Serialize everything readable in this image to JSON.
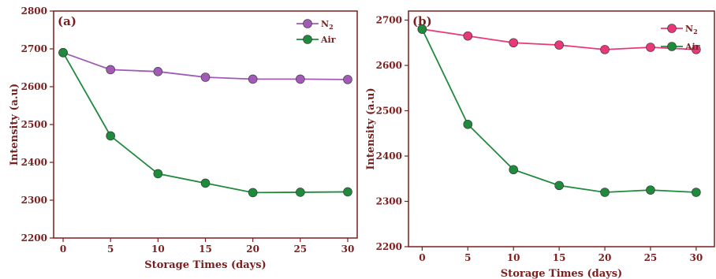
{
  "chart_data": [
    {
      "type": "line",
      "panel_label": "(a)",
      "xlabel": "Storage Times (days)",
      "ylabel": "Intensity (a.u)",
      "x": [
        0,
        5,
        10,
        15,
        20,
        25,
        30
      ],
      "xlim": [
        -1,
        31
      ],
      "ylim": [
        2200,
        2800
      ],
      "xticks": [
        0,
        5,
        10,
        15,
        20,
        25,
        30
      ],
      "yticks": [
        2200,
        2300,
        2400,
        2500,
        2600,
        2700,
        2800
      ],
      "grid": false,
      "legend": "top-right",
      "series": [
        {
          "name": "N",
          "name_sub": "2",
          "color": "#a05bb5",
          "values": [
            2690,
            2645,
            2640,
            2625,
            2620,
            2620,
            2619
          ]
        },
        {
          "name": "Air",
          "color": "#1f8a3c",
          "values": [
            2690,
            2470,
            2370,
            2345,
            2320,
            2321,
            2322
          ]
        }
      ]
    },
    {
      "type": "line",
      "panel_label": "(b)",
      "xlabel": "Storage Times (days)",
      "ylabel": "Intensity (a.u)",
      "x": [
        0,
        5,
        10,
        15,
        20,
        25,
        30
      ],
      "xlim": [
        -1.5,
        32
      ],
      "ylim": [
        2200,
        2720
      ],
      "xticks": [
        0,
        5,
        10,
        15,
        20,
        25,
        30
      ],
      "yticks": [
        2200,
        2300,
        2400,
        2500,
        2600,
        2700
      ],
      "grid": false,
      "legend": "top-right",
      "series": [
        {
          "name": "N",
          "name_sub": "2",
          "color": "#e8387a",
          "values": [
            2680,
            2665,
            2650,
            2645,
            2635,
            2640,
            2635
          ]
        },
        {
          "name": "Air",
          "color": "#1f8a3c",
          "values": [
            2680,
            2470,
            2370,
            2335,
            2320,
            2325,
            2320
          ]
        }
      ]
    }
  ]
}
